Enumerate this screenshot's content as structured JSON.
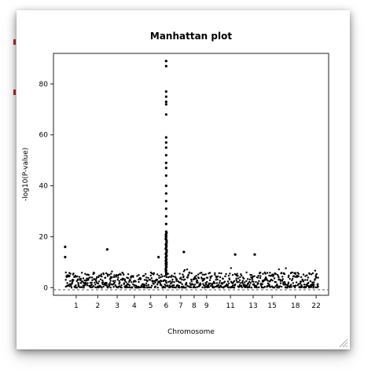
{
  "chart_data": {
    "type": "scatter",
    "title": "Manhattan plot",
    "xlabel": "Chromosome",
    "ylabel": "-log10(P-value)",
    "ylim": [
      -3,
      92
    ],
    "yticks": [
      0,
      20,
      40,
      60,
      80
    ],
    "xtick_labels": [
      "1",
      "2",
      "3",
      "4",
      "5",
      "6",
      "7",
      "8",
      "9",
      "11",
      "13",
      "15",
      "18",
      "22"
    ],
    "threshold_line": 0,
    "grid": false,
    "legend": "none",
    "point_color": "#000000",
    "notable_points": [
      {
        "chromosome": "1",
        "y": 16
      },
      {
        "chromosome": "1",
        "y": 12
      },
      {
        "chromosome": "2",
        "y": 15
      },
      {
        "chromosome": "6",
        "y": 89
      },
      {
        "chromosome": "6",
        "y": 87
      },
      {
        "chromosome": "6",
        "y": 77
      },
      {
        "chromosome": "6",
        "y": 75
      },
      {
        "chromosome": "6",
        "y": 73
      },
      {
        "chromosome": "6",
        "y": 72
      },
      {
        "chromosome": "6",
        "y": 68
      },
      {
        "chromosome": "6",
        "y": 59
      },
      {
        "chromosome": "6",
        "y": 57
      },
      {
        "chromosome": "6",
        "y": 55
      },
      {
        "chromosome": "6",
        "y": 52
      },
      {
        "chromosome": "6",
        "y": 49
      },
      {
        "chromosome": "6",
        "y": 47
      },
      {
        "chromosome": "6",
        "y": 44
      },
      {
        "chromosome": "6",
        "y": 40
      },
      {
        "chromosome": "6",
        "y": 37
      },
      {
        "chromosome": "6",
        "y": 34
      },
      {
        "chromosome": "6",
        "y": 31
      },
      {
        "chromosome": "6",
        "y": 28
      },
      {
        "chromosome": "6",
        "y": 25
      },
      {
        "chromosome": "6",
        "y": 22
      },
      {
        "chromosome": "7",
        "y": 14
      },
      {
        "chromosome": "11",
        "y": 13
      },
      {
        "chromosome": "13",
        "y": 13
      },
      {
        "chromosome": "5",
        "y": 12
      }
    ],
    "background_band_max": 6
  }
}
